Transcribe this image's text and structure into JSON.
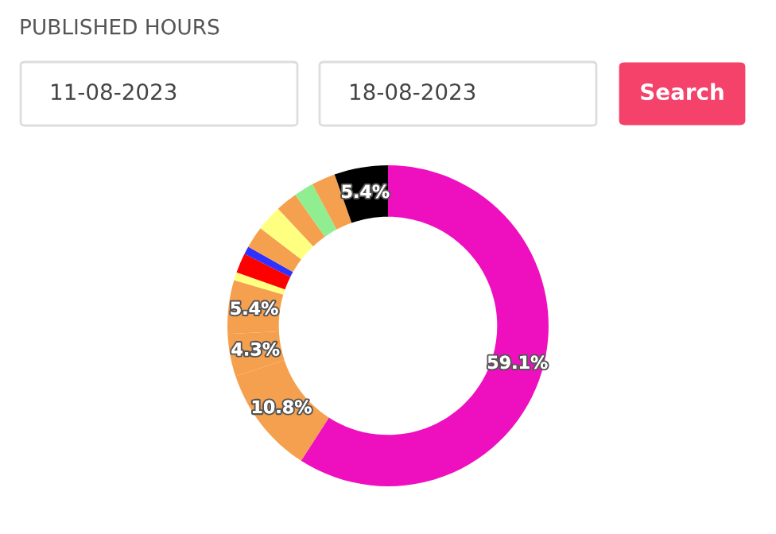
{
  "chart_data": {
    "type": "donut",
    "title": "PUBLISHED HOURS",
    "annotations": [
      "11-08-2023",
      "18-08-2023",
      "Search"
    ],
    "categories": [
      null,
      null,
      null,
      null,
      null,
      null,
      null,
      null,
      null,
      null,
      null,
      null,
      null
    ],
    "values": [
      59.1,
      10.8,
      4.3,
      5.4,
      0.8,
      2.0,
      0.8,
      2.2,
      2.6,
      2.2,
      2.0,
      2.4,
      5.4
    ],
    "value_labels": [
      "59.1%",
      "10.8%",
      "4.3%",
      "5.4%",
      null,
      null,
      null,
      null,
      null,
      null,
      null,
      null,
      "5.4%"
    ],
    "colors": [
      "#ee10bf",
      "#f5a04e",
      "#f5a04e",
      "#f5a04e",
      "#ffff80",
      "#ff0000",
      "#3030ff",
      "#f5a04e",
      "#ffff80",
      "#f5a04e",
      "#90ee90",
      "#f5a04e",
      "#000000"
    ],
    "legend": false
  }
}
